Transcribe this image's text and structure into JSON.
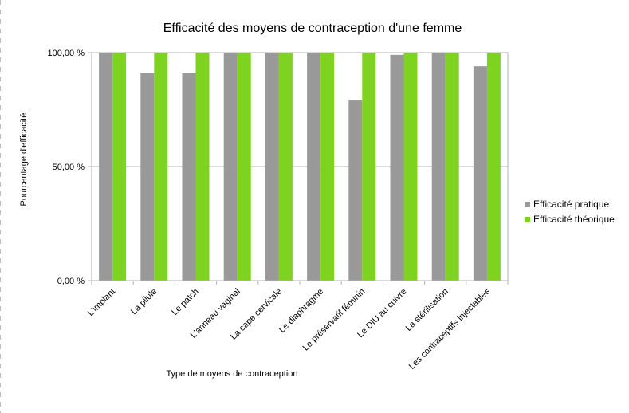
{
  "chart_data": {
    "type": "bar",
    "title": "Efficacité des moyens de contraception d'une femme",
    "xlabel": "Type de moyens de contraception",
    "ylabel": "Pourcentage d'efficacité",
    "ylim": [
      0,
      100
    ],
    "yticks": [
      0,
      50,
      100
    ],
    "ytick_labels": [
      "0,00 %",
      "50,00 %",
      "100,00 %"
    ],
    "grid": true,
    "legend_position": "right",
    "categories": [
      "L'implant",
      "La pilule",
      "Le patch",
      "L'anneau vaginal",
      "La cape cervicale",
      "Le diaphragme",
      "Le préservatif féminin",
      "Le DIU au cuivre",
      "La stérilisation",
      "Les contraceptifs injectables"
    ],
    "series": [
      {
        "name": "Efficacité pratique",
        "color": "#999999",
        "values": [
          100,
          91,
          91,
          100,
          100,
          100,
          79,
          99,
          100,
          94
        ]
      },
      {
        "name": "Efficacité théorique",
        "color": "#7ed321",
        "values": [
          100,
          100,
          100,
          100,
          100,
          100,
          100,
          100,
          100,
          100
        ]
      }
    ]
  }
}
